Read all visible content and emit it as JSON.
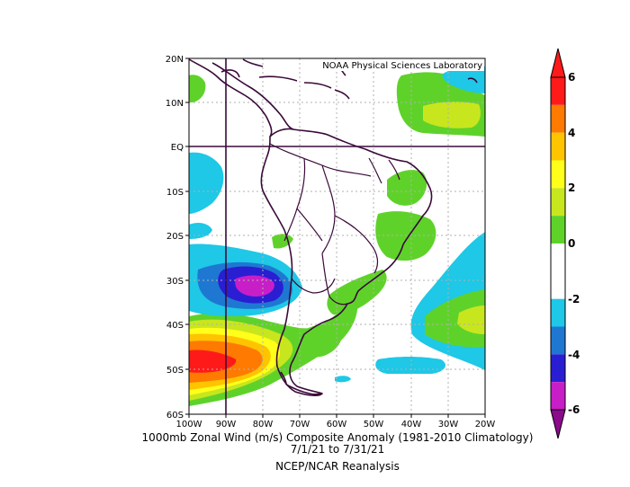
{
  "map": {
    "credit": "NOAA Physical Sciences Laboratory",
    "lat_labels": [
      "20N",
      "10N",
      "EQ",
      "10S",
      "20S",
      "30S",
      "40S",
      "50S",
      "60S"
    ],
    "lon_labels": [
      "100W",
      "90W",
      "80W",
      "70W",
      "60W",
      "50W",
      "40W",
      "30W",
      "20W"
    ],
    "extent": {
      "lon": [
        -100,
        -20
      ],
      "lat": [
        -60,
        20
      ]
    }
  },
  "caption": {
    "line1": "1000mb Zonal Wind (m/s) Composite Anomaly (1981-2010 Climatology)",
    "line2": "7/1/21   to 7/31/21",
    "line3": "NCEP/NCAR Reanalysis"
  },
  "colorbar": {
    "labels": [
      "6",
      "4",
      "2",
      "0",
      "-2",
      "-4",
      "-6"
    ],
    "colors": [
      "#8b0a2a",
      "#ff1a1a",
      "#ff7a00",
      "#ffc400",
      "#ffff1a",
      "#c8e61e",
      "#5fd22a",
      "#ffffff",
      "#ffffff",
      "#1ec8e6",
      "#1e78d2",
      "#2a1ed2",
      "#c81ec8",
      "#8c0a8c"
    ]
  },
  "anomaly_colors": {
    "red": "#ff1a1a",
    "orange": "#ff7a00",
    "yellow": "#ffc400",
    "yellow2": "#ffff1a",
    "lime": "#c8e61e",
    "green": "#5fd22a",
    "cyan": "#1ec8e6",
    "blue": "#1e78d2",
    "indigo": "#2a1ed2",
    "magenta": "#c81ec8"
  }
}
